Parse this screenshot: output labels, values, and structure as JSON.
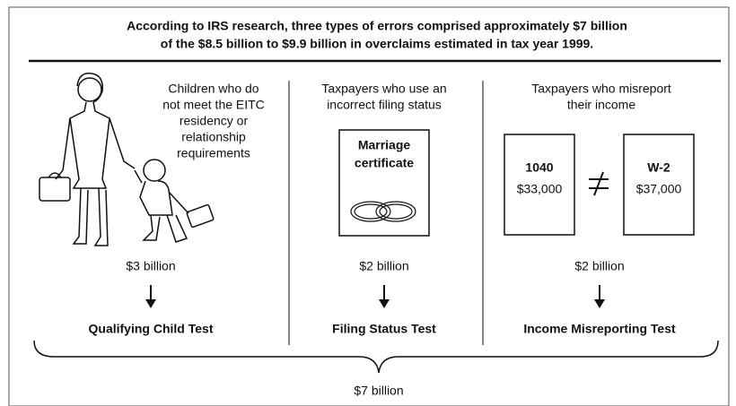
{
  "header": {
    "title_lines": [
      "According to IRS research, three types of errors comprised approximately $7 billion",
      "of the $8.5 billion to $9.9 billion in overclaims estimated in tax year 1999."
    ]
  },
  "columns": [
    {
      "description_lines": [
        "Children who do",
        "not meet the EITC",
        "residency or",
        "relationship",
        "requirements"
      ],
      "amount": "$3 billion",
      "test": "Qualifying Child Test"
    },
    {
      "description_lines": [
        "Taxpayers who use an",
        "incorrect filing status"
      ],
      "document_lines": [
        "Marriage",
        "certificate"
      ],
      "amount": "$2 billion",
      "test": "Filing Status Test"
    },
    {
      "description_lines": [
        "Taxpayers who misreport",
        "their income"
      ],
      "forms": [
        {
          "name": "1040",
          "amount": "$33,000"
        },
        {
          "name": "W-2",
          "amount": "$37,000"
        }
      ],
      "amount": "$2 billion",
      "test": "Income Misreporting Test"
    }
  ],
  "total": "$7 billion"
}
